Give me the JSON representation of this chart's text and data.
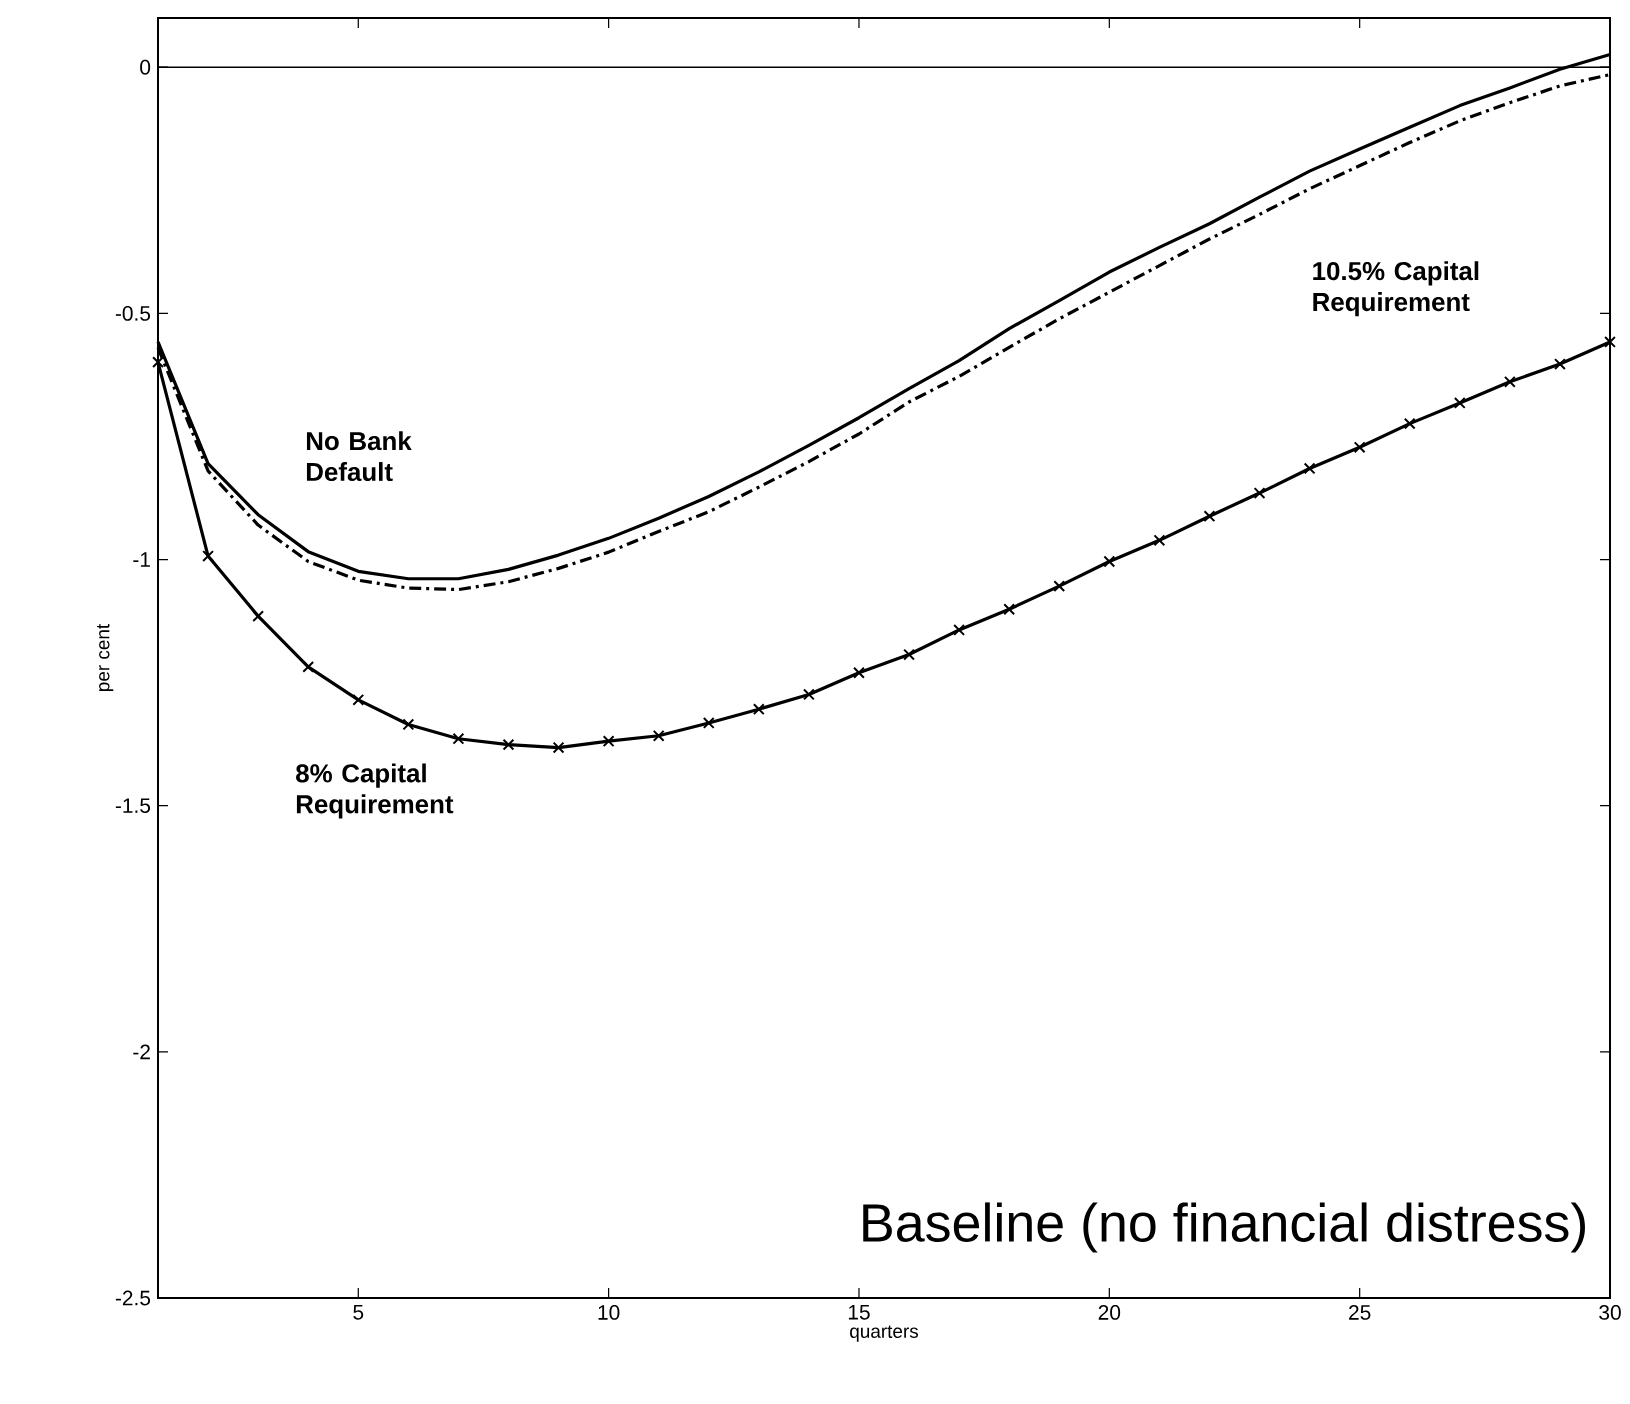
{
  "chart_data": {
    "type": "line",
    "xlabel": "quarters",
    "ylabel": "per cent",
    "x": [
      1,
      2,
      3,
      4,
      5,
      6,
      7,
      8,
      9,
      10,
      11,
      12,
      13,
      14,
      15,
      16,
      17,
      18,
      19,
      20,
      21,
      22,
      23,
      24,
      25,
      26,
      27,
      28,
      29,
      30
    ],
    "series": [
      {
        "name": "**No Bank Default**",
        "color": "#000000",
        "line_style": "solid",
        "marker": "none",
        "values": [
          -0.558,
          -0.805,
          -0.909,
          -0.984,
          -1.024,
          -1.039,
          -1.039,
          -1.02,
          -0.991,
          -0.957,
          -0.916,
          -0.872,
          -0.822,
          -0.768,
          -0.712,
          -0.653,
          -0.596,
          -0.531,
          -0.474,
          -0.416,
          -0.366,
          -0.318,
          -0.264,
          -0.211,
          -0.166,
          -0.122,
          -0.078,
          -0.042,
          -0.004,
          0.026
        ]
      },
      {
        "name": "**10.5% Capital Requirement**",
        "color": "#000000",
        "line_style": "dashdot",
        "marker": "none",
        "values": [
          -0.57,
          -0.82,
          -0.93,
          -1.004,
          -1.042,
          -1.058,
          -1.061,
          -1.045,
          -1.018,
          -0.985,
          -0.943,
          -0.903,
          -0.853,
          -0.801,
          -0.745,
          -0.68,
          -0.628,
          -0.569,
          -0.511,
          -0.457,
          -0.403,
          -0.349,
          -0.299,
          -0.247,
          -0.2,
          -0.153,
          -0.109,
          -0.072,
          -0.038,
          -0.015
        ]
      },
      {
        "name": "**8% Capital Requirement**",
        "color": "#000000",
        "line_style": "solid",
        "marker": "cross",
        "values": [
          -0.599,
          -0.993,
          -1.115,
          -1.218,
          -1.285,
          -1.335,
          -1.364,
          -1.376,
          -1.382,
          -1.369,
          -1.358,
          -1.332,
          -1.304,
          -1.274,
          -1.23,
          -1.193,
          -1.143,
          -1.101,
          -1.054,
          -1.004,
          -0.961,
          -0.912,
          -0.865,
          -0.815,
          -0.772,
          -0.724,
          -0.682,
          -0.639,
          -0.603,
          -0.558
        ]
      }
    ],
    "xlim": [
      1,
      30
    ],
    "xticks": [
      5,
      10,
      15,
      20,
      25,
      30
    ],
    "ylim": [
      -2.5,
      0.1
    ],
    "yticks": [
      -2.5,
      -2,
      -1.5,
      -1,
      -0.5,
      0
    ],
    "grid": false,
    "ref_lines": [
      {
        "axis": "y",
        "value": 0
      }
    ],
    "annotations": [
      "Baseline (no financial distress)"
    ]
  }
}
